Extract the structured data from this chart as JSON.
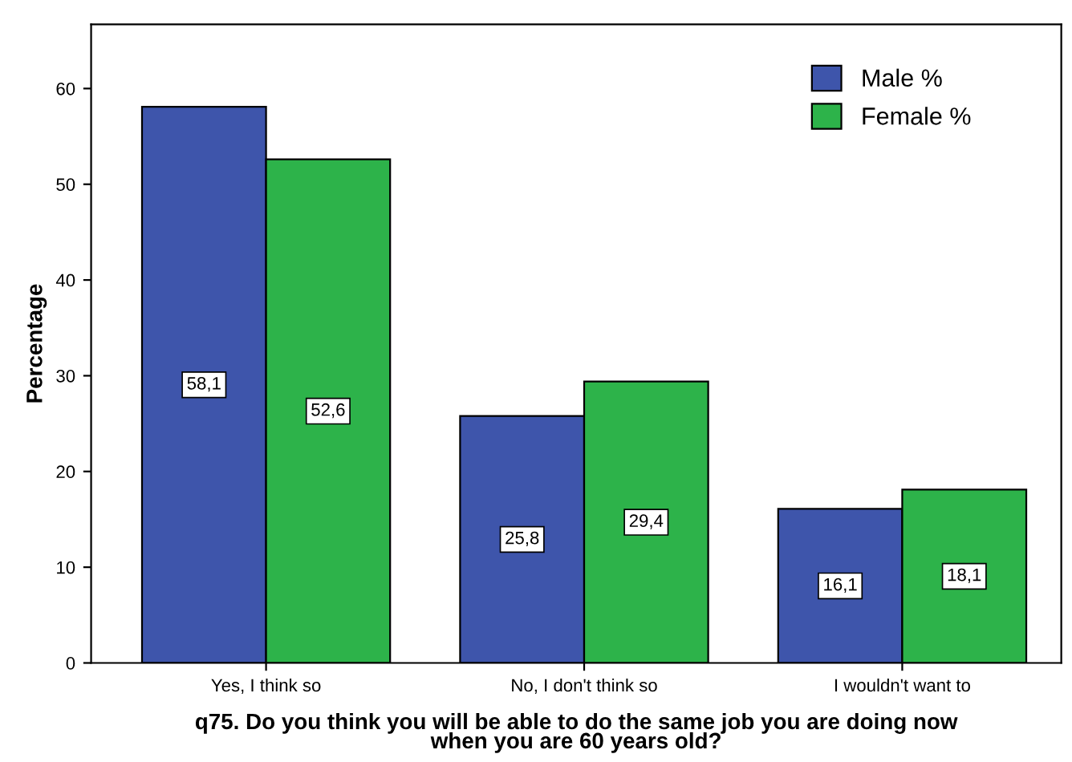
{
  "chart_data": {
    "type": "bar",
    "xlabel": "q75. Do you think you will be able to do the same job you are doing now\nwhen you are 60 years old?",
    "ylabel": "Percentage",
    "categories": [
      "Yes, I think so",
      "No, I don't think so",
      "I wouldn't want to"
    ],
    "series": [
      {
        "name": "Male %",
        "color": "#3e55ab",
        "values": [
          58.1,
          25.8,
          16.1
        ],
        "value_labels": [
          "58,1",
          "25,8",
          "16,1"
        ]
      },
      {
        "name": "Female %",
        "color": "#2db34a",
        "values": [
          52.6,
          29.4,
          18.1
        ],
        "value_labels": [
          "52,6",
          "29,4",
          "18,1"
        ]
      }
    ],
    "ylim": [
      0,
      66.7
    ],
    "yticks": [
      0,
      10,
      20,
      30,
      40,
      50,
      60
    ],
    "grid": false,
    "legend": "top right"
  }
}
